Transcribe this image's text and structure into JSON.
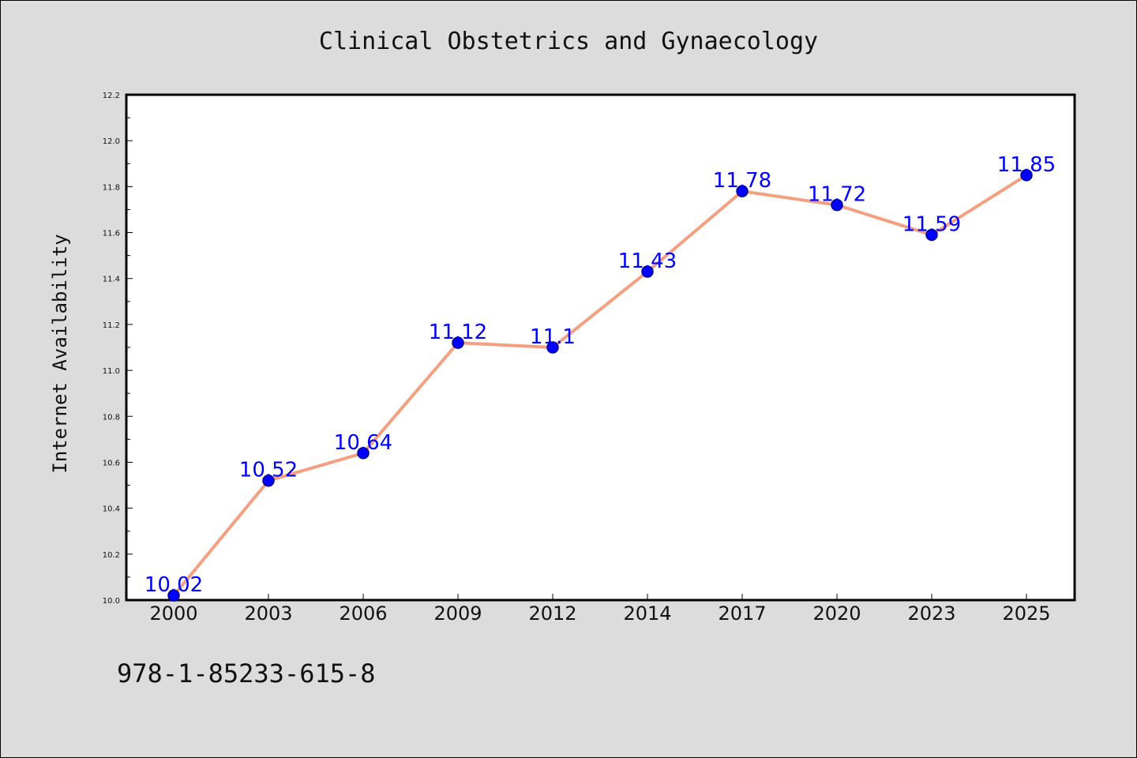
{
  "chart_data": {
    "type": "line",
    "title": "Clinical Obstetrics and Gynaecology",
    "xlabel": "",
    "ylabel": "Internet Availability",
    "categories": [
      "2000",
      "2003",
      "2006",
      "2009",
      "2012",
      "2014",
      "2017",
      "2020",
      "2023",
      "2025"
    ],
    "series": [
      {
        "values": [
          10.02,
          10.52,
          10.64,
          11.12,
          11.1,
          11.43,
          11.78,
          11.72,
          11.59,
          11.85
        ],
        "data_labels": [
          "10.02",
          "10.52",
          "10.64",
          "11.12",
          "11.1",
          "11.43",
          "11.78",
          "11.72",
          "11.59",
          "11.85"
        ]
      }
    ],
    "ylim": [
      10.0,
      12.2
    ],
    "yticks": [
      "10.0",
      "10.2",
      "10.4",
      "10.6",
      "10.8",
      "11.0",
      "11.2",
      "11.4",
      "11.6",
      "11.8",
      "12.0",
      "12.2"
    ],
    "grid": false,
    "colors": {
      "line": "#f4a080",
      "marker": "#0000ff",
      "marker_edge": "#00008b",
      "label": "#0000ff",
      "plot_bg": "#ffffff",
      "figure_bg": "#dcdcdc"
    }
  },
  "footnote": "978-1-85233-615-8"
}
